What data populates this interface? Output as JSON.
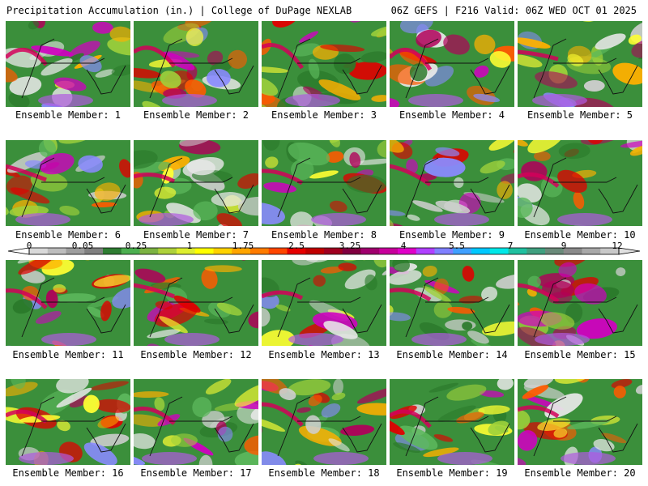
{
  "header": {
    "left": "Precipitation Accumulation (in.) | College of DuPage NEXLAB",
    "right": "06Z GEFS | F216 Valid: 06Z WED OCT 01 2025"
  },
  "members": [
    "Ensemble Member: 1",
    "Ensemble Member: 2",
    "Ensemble Member: 3",
    "Ensemble Member: 4",
    "Ensemble Member: 5",
    "Ensemble Member: 6",
    "Ensemble Member: 7",
    "Ensemble Member: 8",
    "Ensemble Member: 9",
    "Ensemble Member: 10",
    "Ensemble Member: 11",
    "Ensemble Member: 12",
    "Ensemble Member: 13",
    "Ensemble Member: 14",
    "Ensemble Member: 15",
    "Ensemble Member: 16",
    "Ensemble Member: 17",
    "Ensemble Member: 18",
    "Ensemble Member: 19",
    "Ensemble Member: 20"
  ],
  "colorbar": {
    "labels": [
      "0",
      "0.05",
      "0.25",
      "1",
      "1.75",
      "2.5",
      "3.25",
      "4",
      "5.5",
      "7",
      "9",
      "12"
    ],
    "colors": [
      "#d9d9d9",
      "#bdbdbd",
      "#9e9e9e",
      "#808080",
      "#2e7d32",
      "#4caf50",
      "#7cb342",
      "#aed13b",
      "#ddee30",
      "#ffff00",
      "#ffd200",
      "#ffa500",
      "#ff7b00",
      "#ff4500",
      "#e60000",
      "#c00000",
      "#a00020",
      "#800040",
      "#a0006e",
      "#c8009c",
      "#e000c8",
      "#b040ff",
      "#8080ff",
      "#40a0ff",
      "#00c8ff",
      "#00e8e8",
      "#20c0a0",
      "#40a080",
      "#6a8a7a",
      "#8a8a8a",
      "#a8a8a8",
      "#c8c8c8"
    ]
  }
}
